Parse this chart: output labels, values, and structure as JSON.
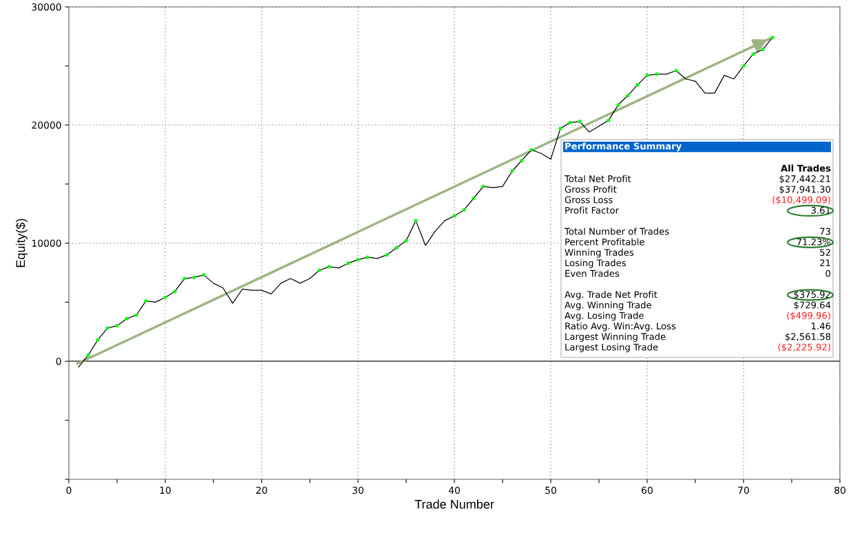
{
  "chart_data": {
    "type": "line",
    "xlabel": "Trade Number",
    "ylabel": "Equity($)",
    "xlim": [
      0,
      80
    ],
    "ylim": [
      -10000,
      30000
    ],
    "xticks": [
      0,
      {
        "value": 5,
        "label": null
      },
      10,
      {
        "value": 15,
        "label": null
      },
      20,
      {
        "value": 25,
        "label": null
      },
      30,
      {
        "value": 35,
        "label": null
      },
      40,
      {
        "value": 45,
        "label": null
      },
      50,
      {
        "value": 55,
        "label": null
      },
      60,
      {
        "value": 65,
        "label": null
      },
      70,
      {
        "value": 75,
        "label": null
      },
      80
    ],
    "yticks": [
      {
        "value": -10000,
        "label": null
      },
      {
        "value": -5000,
        "label": null
      },
      0,
      {
        "value": 5000,
        "label": null
      },
      10000,
      {
        "value": 15000,
        "label": null
      },
      20000,
      {
        "value": 25000,
        "label": null
      },
      30000
    ],
    "grid": true,
    "legend": false,
    "ref_lines": [
      {
        "axis": "y",
        "value": 0,
        "color": "#404040",
        "line_style": "solid"
      }
    ],
    "series": [
      {
        "type": "line",
        "color": "#000000",
        "marker": "none",
        "x": [
          1,
          2,
          3,
          4,
          5,
          6,
          7,
          8,
          9,
          10,
          11,
          12,
          13,
          14,
          15,
          16,
          17,
          18,
          19,
          20,
          21,
          22,
          23,
          24,
          25,
          26,
          27,
          28,
          29,
          30,
          31,
          32,
          33,
          34,
          35,
          36,
          37,
          38,
          39,
          40,
          41,
          42,
          43,
          44,
          45,
          46,
          47,
          48,
          49,
          50,
          51,
          52,
          53,
          54,
          55,
          56,
          57,
          58,
          59,
          60,
          61,
          62,
          63,
          64,
          65,
          66,
          67,
          68,
          69,
          70,
          71,
          72,
          73
        ],
        "values": [
          -500,
          500,
          1800,
          2800,
          3000,
          3600,
          3900,
          5100,
          5000,
          5400,
          5900,
          7000,
          7100,
          7300,
          6600,
          6200,
          4900,
          6100,
          6000,
          6000,
          5700,
          6600,
          7000,
          6600,
          7000,
          7700,
          8000,
          7900,
          8300,
          8600,
          8800,
          8700,
          9000,
          9600,
          10200,
          11900,
          9800,
          11000,
          11900,
          12300,
          12800,
          13800,
          14800,
          14700,
          14800,
          16100,
          17000,
          17900,
          17600,
          17100,
          19700,
          20200,
          20300,
          19400,
          19900,
          20400,
          21700,
          22500,
          23400,
          24200,
          24300,
          24300,
          24600,
          23900,
          23700,
          22700,
          22700,
          24200,
          23900,
          25000,
          26000,
          26400,
          27400
        ]
      },
      {
        "type": "scatter",
        "color": "#00ff00",
        "marker": "circle",
        "x": [
          2,
          3,
          4,
          5,
          6,
          7,
          8,
          10,
          11,
          12,
          13,
          14,
          26,
          27,
          29,
          30,
          31,
          33,
          34,
          35,
          36,
          40,
          41,
          42,
          43,
          46,
          47,
          48,
          51,
          52,
          53,
          56,
          57,
          58,
          59,
          60,
          61,
          63,
          70,
          71,
          72,
          73
        ],
        "values": [
          500,
          1800,
          2800,
          3000,
          3600,
          3900,
          5100,
          5400,
          5900,
          7000,
          7100,
          7300,
          7700,
          8000,
          8300,
          8600,
          8800,
          9000,
          9600,
          10200,
          11900,
          12300,
          12800,
          13800,
          14800,
          16100,
          17000,
          17900,
          19700,
          20200,
          20300,
          20400,
          21700,
          22500,
          23400,
          24200,
          24300,
          24600,
          25000,
          26000,
          26400,
          27400
        ]
      },
      {
        "type": "line",
        "color": "#9db584",
        "marker": "none",
        "x": [
          0.9,
          72.7
        ],
        "values": [
          -200,
          27300
        ]
      }
    ],
    "annotations": [
      "Performance Summary",
      "All Trades",
      "Total Net Profit",
      "$27,442.21",
      "Gross Profit",
      "$37,941.30",
      "Gross Loss",
      "($10,499.09)",
      "Profit Factor",
      "3.61",
      "Total Number of Trades",
      "73",
      "Percent Profitable",
      "71.23%",
      "Winning Trades",
      "52",
      "Losing Trades",
      "21",
      "Even Trades",
      "0",
      "Avg. Trade Net Profit",
      "$375.92",
      "Avg. Winning Trade",
      "$729.64",
      "Avg. Losing Trade",
      "($499.96)",
      "Ratio Avg. Win:Avg. Loss",
      "1.46",
      "Largest Winning Trade",
      "$2,561.58",
      "Largest Losing Trade",
      "($2,225.92)"
    ]
  }
}
